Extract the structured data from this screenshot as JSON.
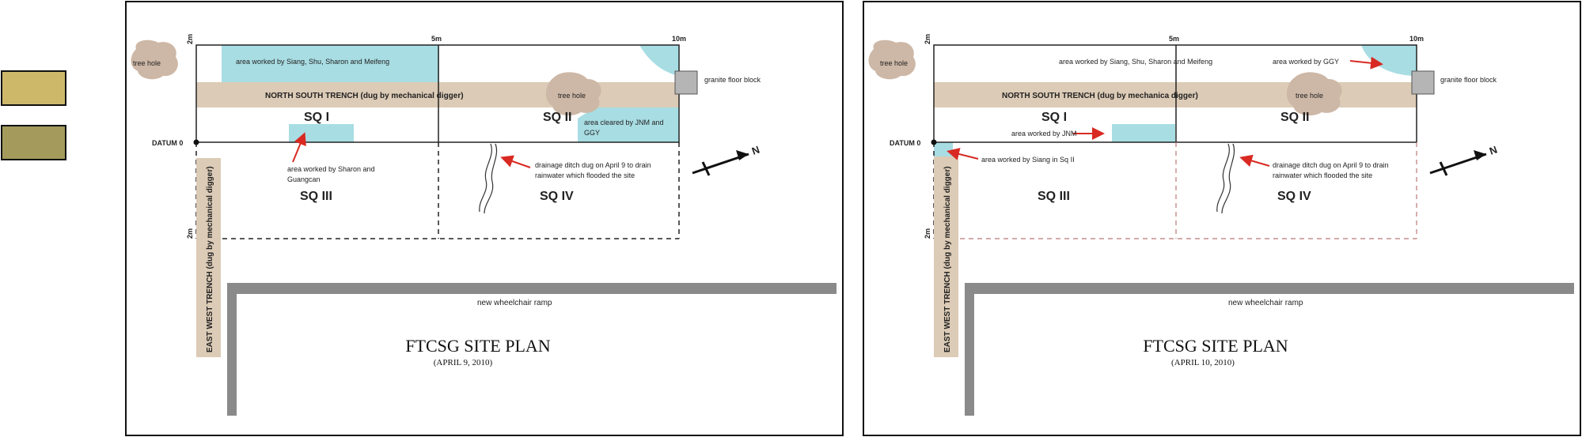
{
  "legend": {
    "swatch_colors": [
      "#cdb86a",
      "#a39a5c"
    ]
  },
  "colors": {
    "trench": "#dccbb6",
    "worked_area": "#a8dde3",
    "tree_hole": "#cdb7a6",
    "ramp": "#8a8a8a",
    "arrow": "#d82a22",
    "granite": "#b5b5b5"
  },
  "plans": [
    {
      "scale_top_0": "2m",
      "scale_top_5": "5m",
      "scale_top_10": "10m",
      "scale_side": "2m",
      "datum": "DATUM 0",
      "tree_hole_left": "tree hole",
      "tree_hole_mid": "tree hole",
      "area_worked_top": "area worked by Siang, Shu, Sharon and Meifeng",
      "ns_trench": "NORTH SOUTH TRENCH (dug by mechanical digger)",
      "granite": "granite floor block",
      "sq1": "SQ I",
      "sq2": "SQ II",
      "sq3": "SQ III",
      "sq4": "SQ IV",
      "area_cleared_1": "area cleared by JNM and",
      "area_cleared_2": "GGY",
      "sharon_1": "area worked by Sharon and",
      "sharon_2": "Guangcan",
      "drain_1": "drainage ditch dug on April 9 to drain",
      "drain_2": "rainwater which flooded the site",
      "north": "N",
      "ew_trench": "EAST WEST TRENCH (dug by mechanical digger)",
      "ramp": "new wheelchair ramp",
      "title": "FTCSG SITE PLAN",
      "date": "(APRIL 9, 2010)"
    },
    {
      "scale_top_0": "2m",
      "scale_top_5": "5m",
      "scale_top_10": "10m",
      "scale_side": "2m",
      "datum": "DATUM 0",
      "tree_hole_left": "tree hole",
      "tree_hole_mid": "tree hole",
      "area_worked_top": "area worked by Siang, Shu, Sharon and Meifeng",
      "area_ggy": "area worked by GGY",
      "ns_trench": "NORTH SOUTH TRENCH (dug by mechanica digger)",
      "granite": "granite floor block",
      "sq1": "SQ I",
      "sq2": "SQ II",
      "sq3": "SQ III",
      "sq4": "SQ IV",
      "area_jnm": "area worked by JNM",
      "area_siang": "area worked by Siang in Sq II",
      "drain_1": "drainage ditch dug on April 9 to drain",
      "drain_2": "rainwater which flooded the site",
      "north": "N",
      "ew_trench": "EAST WEST TRENCH (dug by mechanical digger)",
      "ramp": "new wheelchair ramp",
      "title": "FTCSG SITE PLAN",
      "date": "(APRIL 10, 2010)"
    }
  ]
}
